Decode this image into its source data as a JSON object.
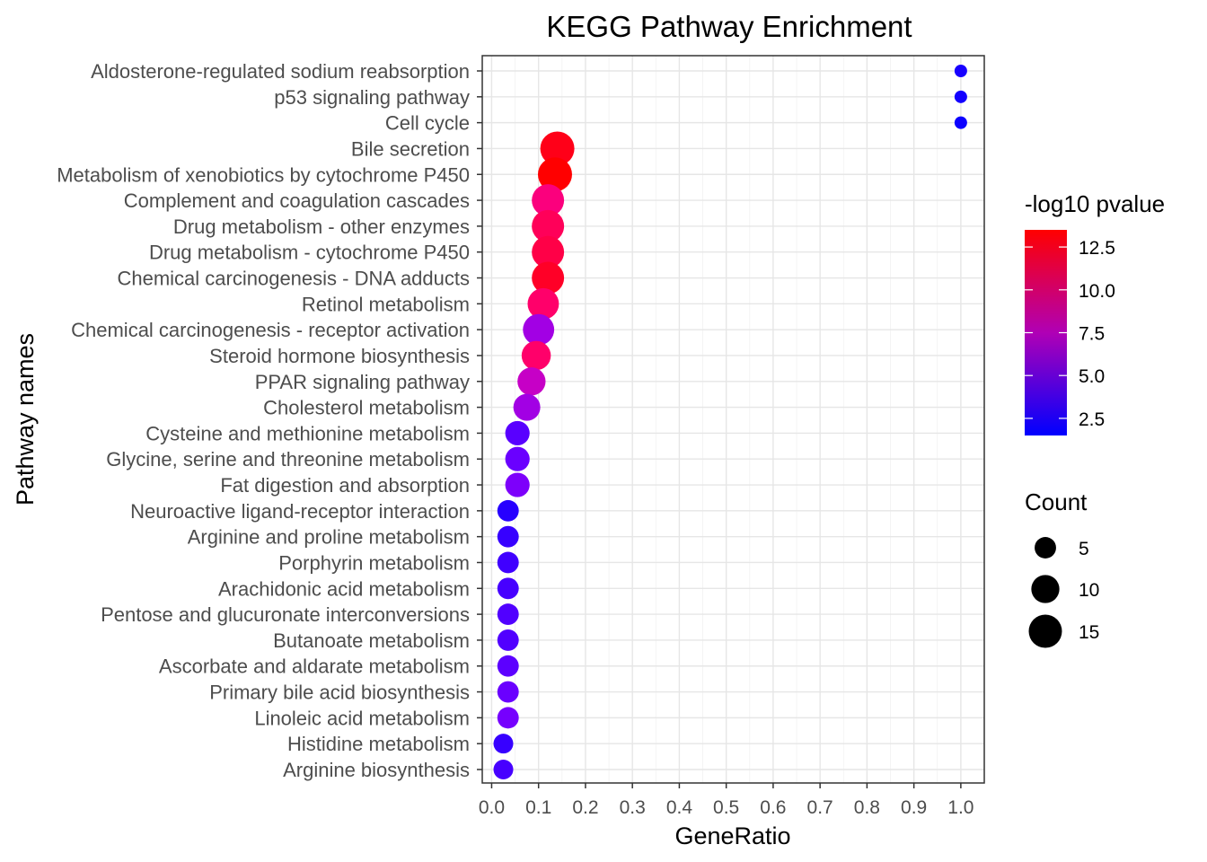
{
  "chart_data": {
    "type": "scatter",
    "title": "KEGG Pathway Enrichment",
    "xlabel": "GeneRatio",
    "ylabel": "Pathway names",
    "xlim": [
      -0.02,
      1.05
    ],
    "xticks": [
      0.0,
      0.1,
      0.2,
      0.3,
      0.4,
      0.5,
      0.6,
      0.7,
      0.8,
      0.9,
      1.0
    ],
    "xtick_labels": [
      "0.0",
      "0.1",
      "0.2",
      "0.3",
      "0.4",
      "0.5",
      "0.6",
      "0.7",
      "0.8",
      "0.9",
      "1.0"
    ],
    "grid": true,
    "color_legend": {
      "title": "-log10 pvalue",
      "low_color": "#0000ff",
      "high_color": "#ff0000",
      "range": [
        1.5,
        13.5
      ],
      "ticks": [
        "12.5",
        "10.0",
        "7.5",
        "5.0",
        "2.5"
      ],
      "tick_values": [
        12.5,
        10.0,
        7.5,
        5.0,
        2.5
      ]
    },
    "size_legend": {
      "title": "Count",
      "labels": [
        "5",
        "10",
        "15"
      ],
      "values": [
        5,
        10,
        15
      ]
    },
    "points": [
      {
        "pathway": "Aldosterone-regulated sodium reabsorption",
        "gene_ratio": 1.0,
        "neg_log10_p": 2.5,
        "count": 1
      },
      {
        "pathway": "p53 signaling pathway",
        "gene_ratio": 1.0,
        "neg_log10_p": 2.3,
        "count": 1
      },
      {
        "pathway": "Cell cycle",
        "gene_ratio": 1.0,
        "neg_log10_p": 2.0,
        "count": 1
      },
      {
        "pathway": "Bile secretion",
        "gene_ratio": 0.14,
        "neg_log10_p": 12.5,
        "count": 16
      },
      {
        "pathway": "Metabolism of xenobiotics by cytochrome P450",
        "gene_ratio": 0.135,
        "neg_log10_p": 13.5,
        "count": 16
      },
      {
        "pathway": "Complement and coagulation cascades",
        "gene_ratio": 0.12,
        "neg_log10_p": 9.5,
        "count": 14
      },
      {
        "pathway": "Drug metabolism - other enzymes",
        "gene_ratio": 0.12,
        "neg_log10_p": 10.5,
        "count": 14
      },
      {
        "pathway": "Drug metabolism - cytochrome P450",
        "gene_ratio": 0.12,
        "neg_log10_p": 11.0,
        "count": 14
      },
      {
        "pathway": "Chemical carcinogenesis - DNA adducts",
        "gene_ratio": 0.12,
        "neg_log10_p": 12.0,
        "count": 14
      },
      {
        "pathway": "Retinol metabolism",
        "gene_ratio": 0.11,
        "neg_log10_p": 10.0,
        "count": 13
      },
      {
        "pathway": "Chemical carcinogenesis - receptor activation",
        "gene_ratio": 0.1,
        "neg_log10_p": 6.5,
        "count": 13
      },
      {
        "pathway": "Steroid hormone biosynthesis",
        "gene_ratio": 0.095,
        "neg_log10_p": 10.0,
        "count": 11
      },
      {
        "pathway": "PPAR signaling pathway",
        "gene_ratio": 0.085,
        "neg_log10_p": 7.5,
        "count": 10
      },
      {
        "pathway": "Cholesterol metabolism",
        "gene_ratio": 0.075,
        "neg_log10_p": 6.5,
        "count": 9
      },
      {
        "pathway": "Cysteine and methionine metabolism",
        "gene_ratio": 0.055,
        "neg_log10_p": 4.5,
        "count": 7
      },
      {
        "pathway": "Glycine, serine and threonine metabolism",
        "gene_ratio": 0.055,
        "neg_log10_p": 5.0,
        "count": 7
      },
      {
        "pathway": "Fat digestion and absorption",
        "gene_ratio": 0.055,
        "neg_log10_p": 5.5,
        "count": 7
      },
      {
        "pathway": "Neuroactive ligand-receptor interaction",
        "gene_ratio": 0.035,
        "neg_log10_p": 3.0,
        "count": 5
      },
      {
        "pathway": "Arginine and proline metabolism",
        "gene_ratio": 0.035,
        "neg_log10_p": 3.5,
        "count": 5
      },
      {
        "pathway": "Porphyrin metabolism",
        "gene_ratio": 0.035,
        "neg_log10_p": 3.8,
        "count": 5
      },
      {
        "pathway": "Arachidonic acid metabolism",
        "gene_ratio": 0.035,
        "neg_log10_p": 4.0,
        "count": 5
      },
      {
        "pathway": "Pentose and glucuronate interconversions",
        "gene_ratio": 0.035,
        "neg_log10_p": 4.3,
        "count": 5
      },
      {
        "pathway": "Butanoate metabolism",
        "gene_ratio": 0.035,
        "neg_log10_p": 4.3,
        "count": 5
      },
      {
        "pathway": "Ascorbate and aldarate metabolism",
        "gene_ratio": 0.035,
        "neg_log10_p": 4.6,
        "count": 5
      },
      {
        "pathway": "Primary bile acid biosynthesis",
        "gene_ratio": 0.035,
        "neg_log10_p": 5.0,
        "count": 5
      },
      {
        "pathway": "Linoleic acid metabolism",
        "gene_ratio": 0.035,
        "neg_log10_p": 5.3,
        "count": 5
      },
      {
        "pathway": "Histidine metabolism",
        "gene_ratio": 0.025,
        "neg_log10_p": 3.5,
        "count": 4
      },
      {
        "pathway": "Arginine biosynthesis",
        "gene_ratio": 0.025,
        "neg_log10_p": 4.0,
        "count": 4
      }
    ]
  }
}
